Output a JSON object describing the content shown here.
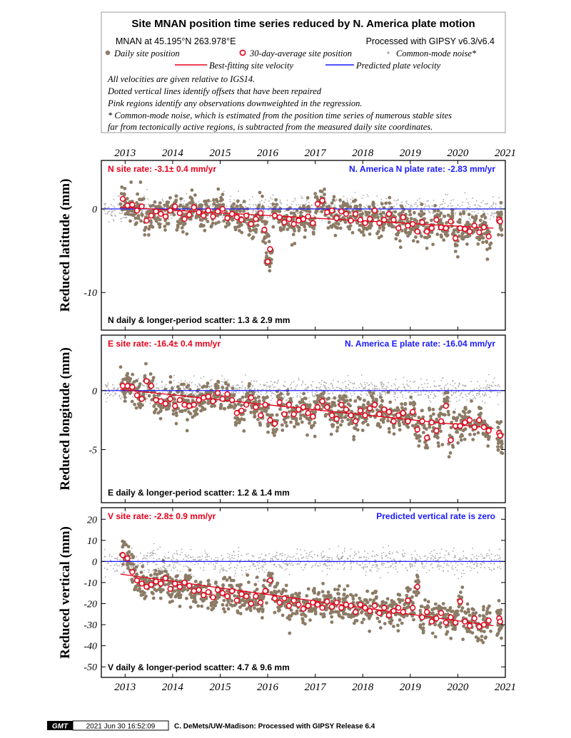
{
  "title": "Site MNAN position time series reduced by N. America plate motion",
  "header": {
    "site_location": "MNAN at 45.195°N 263.978°E",
    "processed_with": "Processed with GIPSY v6.3/v6.4",
    "legend": {
      "daily": "Daily site position",
      "avg30": "30-day-average site position",
      "common_mode": "Common-mode noise*",
      "best_fit": "Best-fitting site velocity",
      "predicted": "Predicted plate velocity"
    },
    "notes": [
      "All velocities are given relative to IGS14.",
      "Dotted vertical lines identify offsets that have been repaired",
      "Pink regions identify any observations downweighted in the regression.",
      "* Common-mode noise, which is estimated from the position time series of numerous stable sites",
      "far from tectonically active regions, is subtracted from the measured daily site coordinates."
    ]
  },
  "colors": {
    "daily": "#8c7b65",
    "common_mode": "#a8a8a8",
    "avg30_stroke": "#e8001a",
    "best_fit": "#e8001a",
    "predicted": "#1a1aff",
    "rate_text": "#e8001a",
    "plate_text": "#1a1aff"
  },
  "footer": {
    "logo": "GMT",
    "timestamp": "2021 Jun 30 16:52:09",
    "credit": "C. DeMets/UW-Madison: Processed with GIPSY Release 6.4"
  },
  "chart_data": [
    {
      "type": "scatter",
      "component": "N",
      "ylabel": "Reduced latitude (mm)",
      "xlim": [
        2012.5,
        2021.0
      ],
      "ylim": [
        -14.5,
        5.8
      ],
      "xticks": [
        2013,
        2014,
        2015,
        2016,
        2017,
        2018,
        2019,
        2020,
        2021
      ],
      "yticks": [
        0,
        -10
      ],
      "site_rate_label": "N site rate:  -3.1± 0.4 mm/yr",
      "plate_rate_label": "N. America N plate rate: -2.83 mm/yr",
      "scatter_label": "N daily & longer-period scatter:   1.3 &   2.9 mm",
      "best_fit_line": {
        "x": [
          2012.9,
          2020.75
        ],
        "y": [
          0.2,
          -2.3
        ]
      },
      "predicted_line_y": 0,
      "avg30": {
        "x": [
          2012.95,
          2013.05,
          2013.15,
          2013.25,
          2013.35,
          2013.45,
          2013.55,
          2013.65,
          2013.75,
          2013.85,
          2013.95,
          2014.05,
          2014.15,
          2014.25,
          2014.35,
          2014.45,
          2014.55,
          2014.65,
          2014.75,
          2014.85,
          2014.95,
          2015.05,
          2015.15,
          2015.25,
          2015.35,
          2015.45,
          2015.55,
          2015.65,
          2015.75,
          2015.85,
          2015.93,
          2016.0,
          2016.05,
          2016.15,
          2016.25,
          2016.35,
          2016.45,
          2016.55,
          2016.65,
          2016.75,
          2016.85,
          2016.95,
          2017.05,
          2017.15,
          2017.25,
          2017.35,
          2017.45,
          2017.55,
          2017.65,
          2017.75,
          2017.85,
          2017.95,
          2018.05,
          2018.15,
          2018.25,
          2018.35,
          2018.45,
          2018.55,
          2018.65,
          2018.75,
          2018.85,
          2018.95,
          2019.05,
          2019.15,
          2019.25,
          2019.35,
          2019.45,
          2019.55,
          2019.65,
          2019.75,
          2019.85,
          2019.95,
          2020.05,
          2020.15,
          2020.25,
          2020.35,
          2020.45,
          2020.55,
          2020.65,
          2020.87,
          2020.89
        ],
        "y": [
          1.2,
          0.4,
          0.5,
          -0.2,
          0.3,
          -1.4,
          -0.8,
          -0.3,
          -0.6,
          -0.9,
          -0.2,
          0.3,
          -0.5,
          -1.2,
          -0.7,
          0.2,
          -0.4,
          -0.8,
          -0.2,
          -0.9,
          -0.3,
          0.0,
          -1.1,
          -0.6,
          -1.0,
          -1.3,
          -0.8,
          -1.8,
          -1.2,
          -0.5,
          -2.5,
          -6.3,
          -4.8,
          -0.8,
          -1.0,
          -1.6,
          -1.2,
          -1.8,
          -1.4,
          -1.2,
          -0.9,
          -1.7,
          0.6,
          1.0,
          -0.4,
          -0.2,
          -1.1,
          -0.3,
          -0.6,
          -1.4,
          -0.6,
          -1.3,
          -1.7,
          -1.2,
          -0.2,
          -1.7,
          -1.3,
          -0.6,
          -1.3,
          -2.3,
          -1.0,
          -2.0,
          -1.8,
          -2.7,
          -1.6,
          -2.7,
          -2.3,
          -1.3,
          -2.2,
          -2.3,
          -1.5,
          -3.5,
          -2.3,
          -2.4,
          -2.7,
          -2.0,
          -2.8,
          -2.2,
          -3.3,
          -1.3,
          -1.5
        ]
      }
    },
    {
      "type": "scatter",
      "component": "E",
      "ylabel": "Reduced longitude (mm)",
      "xlim": [
        2012.5,
        2021.0
      ],
      "ylim": [
        -9.5,
        4.7
      ],
      "xticks": [
        2013,
        2014,
        2015,
        2016,
        2017,
        2018,
        2019,
        2020,
        2021
      ],
      "yticks": [
        0,
        -5
      ],
      "site_rate_label": "E site rate:  -16.4± 0.4 mm/yr",
      "plate_rate_label": "N. America E plate rate: -16.04 mm/yr",
      "scatter_label": "E daily & longer-period scatter:   1.2 &   1.4 mm",
      "best_fit_line": {
        "x": [
          2012.9,
          2020.75
        ],
        "y": [
          0.1,
          -3.2
        ]
      },
      "predicted_line_y": 0,
      "avg30": {
        "x": [
          2012.95,
          2013.05,
          2013.15,
          2013.25,
          2013.35,
          2013.45,
          2013.55,
          2013.65,
          2013.75,
          2013.85,
          2013.95,
          2014.05,
          2014.15,
          2014.25,
          2014.35,
          2014.45,
          2014.55,
          2014.65,
          2014.75,
          2014.85,
          2014.95,
          2015.05,
          2015.15,
          2015.25,
          2015.35,
          2015.45,
          2015.55,
          2015.65,
          2015.75,
          2015.85,
          2015.95,
          2016.05,
          2016.15,
          2016.25,
          2016.35,
          2016.45,
          2016.55,
          2016.65,
          2016.75,
          2016.85,
          2016.95,
          2017.05,
          2017.15,
          2017.25,
          2017.35,
          2017.45,
          2017.55,
          2017.65,
          2017.75,
          2017.85,
          2017.95,
          2018.05,
          2018.15,
          2018.25,
          2018.35,
          2018.45,
          2018.55,
          2018.65,
          2018.75,
          2018.85,
          2018.95,
          2019.05,
          2019.15,
          2019.25,
          2019.35,
          2019.45,
          2019.55,
          2019.65,
          2019.75,
          2019.85,
          2019.95,
          2020.05,
          2020.15,
          2020.25,
          2020.35,
          2020.45,
          2020.55,
          2020.65,
          2020.87,
          2020.89
        ],
        "y": [
          0.4,
          0.4,
          0.3,
          -0.4,
          -0.7,
          0.8,
          0.4,
          -0.8,
          -0.9,
          -1.1,
          -0.7,
          -1.3,
          -0.8,
          -1.2,
          -1.3,
          -1.2,
          -0.8,
          -0.6,
          -0.5,
          -0.9,
          -0.2,
          -0.7,
          -0.3,
          -0.8,
          -1.9,
          -1.7,
          -1.2,
          -0.6,
          -1.4,
          -2.1,
          -1.2,
          -2.5,
          -2.8,
          -1.0,
          -2.0,
          -1.2,
          -2.0,
          -1.6,
          -1.4,
          -1.9,
          -2.2,
          -1.4,
          -0.9,
          -1.4,
          -2.1,
          -2.4,
          -1.2,
          -1.6,
          -2.1,
          -2.6,
          -1.7,
          -2.1,
          -1.5,
          -1.2,
          -2.0,
          -1.6,
          -1.8,
          -2.6,
          -2.1,
          -1.9,
          -2.6,
          -1.8,
          -3.3,
          -2.6,
          -4.0,
          -2.7,
          -3.4,
          -2.6,
          -1.3,
          -4.2,
          -3.0,
          -3.0,
          -2.7,
          -2.5,
          -3.1,
          -2.5,
          -3.1,
          -3.4,
          -3.6,
          -3.8
        ]
      }
    },
    {
      "type": "scatter",
      "component": "V",
      "ylabel": "Reduced vertical (mm)",
      "xlim": [
        2012.5,
        2021.0
      ],
      "ylim": [
        -55,
        25.5
      ],
      "xticks": [
        2013,
        2014,
        2015,
        2016,
        2017,
        2018,
        2019,
        2020,
        2021
      ],
      "yticks": [
        20,
        10,
        0,
        -10,
        -20,
        -30,
        -40,
        -50
      ],
      "site_rate_label": "V site rate:  -2.8± 0.9 mm/yr",
      "plate_rate_label": "Predicted vertical rate is zero",
      "scatter_label": "V daily & longer-period scatter:   4.7 &   9.6 mm",
      "best_fit_line": {
        "x": [
          2012.9,
          2020.75
        ],
        "y": [
          -6.0,
          -30.5
        ]
      },
      "predicted_line_y": 0,
      "avg30": {
        "x": [
          2012.95,
          2013.05,
          2013.15,
          2013.25,
          2013.35,
          2013.45,
          2013.55,
          2013.65,
          2013.75,
          2013.85,
          2013.95,
          2014.05,
          2014.15,
          2014.25,
          2014.35,
          2014.45,
          2014.55,
          2014.65,
          2014.75,
          2014.85,
          2014.95,
          2015.05,
          2015.15,
          2015.25,
          2015.35,
          2015.45,
          2015.55,
          2015.65,
          2015.75,
          2015.85,
          2015.95,
          2016.05,
          2016.15,
          2016.25,
          2016.35,
          2016.45,
          2016.55,
          2016.65,
          2016.75,
          2016.85,
          2016.95,
          2017.05,
          2017.15,
          2017.25,
          2017.35,
          2017.45,
          2017.55,
          2017.65,
          2017.75,
          2017.85,
          2017.95,
          2018.05,
          2018.15,
          2018.25,
          2018.35,
          2018.45,
          2018.55,
          2018.65,
          2018.75,
          2018.85,
          2018.95,
          2019.05,
          2019.15,
          2019.25,
          2019.35,
          2019.45,
          2019.55,
          2019.65,
          2019.75,
          2019.85,
          2019.95,
          2020.05,
          2020.15,
          2020.25,
          2020.35,
          2020.45,
          2020.55,
          2020.65,
          2020.87,
          2020.89
        ],
        "y": [
          3.0,
          1.5,
          -5.0,
          -9.0,
          -10.5,
          -12.0,
          -11.0,
          -9.5,
          -10.5,
          -8.0,
          -13.0,
          -10.5,
          -12.0,
          -10.0,
          -11.5,
          -14.0,
          -13.5,
          -16.0,
          -14.5,
          -17.0,
          -13.5,
          -15.0,
          -16.5,
          -14.0,
          -18.5,
          -15.5,
          -16.5,
          -20.0,
          -16.5,
          -19.5,
          -14.0,
          -9.0,
          -17.5,
          -19.5,
          -17.5,
          -21.0,
          -18.5,
          -20.5,
          -22.5,
          -21.0,
          -19.5,
          -20.5,
          -22.0,
          -19.0,
          -21.5,
          -19.5,
          -22.0,
          -20.5,
          -21.0,
          -24.0,
          -20.5,
          -22.0,
          -23.5,
          -21.0,
          -24.5,
          -22.0,
          -25.5,
          -23.5,
          -22.0,
          -24.0,
          -18.5,
          -22.0,
          -12.0,
          -26.5,
          -24.0,
          -28.5,
          -27.0,
          -24.5,
          -29.0,
          -26.5,
          -29.0,
          -19.0,
          -28.5,
          -30.5,
          -27.0,
          -31.0,
          -30.0,
          -28.0,
          -27.0,
          -28.5
        ]
      }
    }
  ]
}
